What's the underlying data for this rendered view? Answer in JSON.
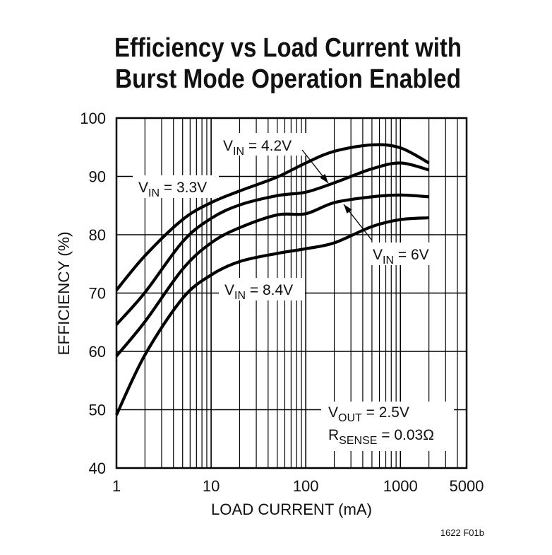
{
  "chart_data": {
    "type": "line",
    "title": [
      "Efficiency vs Load Current with",
      "Burst Mode Operation Enabled"
    ],
    "xlabel": "LOAD CURRENT (mA)",
    "ylabel": "EFFICIENCY (%)",
    "x_scale": "log",
    "xlim": [
      1,
      5000
    ],
    "ylim": [
      40,
      100
    ],
    "grid": true,
    "x_ticks": [
      "1",
      "10",
      "100",
      "1000",
      "5000"
    ],
    "x_tick_values": [
      1,
      10,
      100,
      1000,
      5000
    ],
    "y_ticks": [
      "40",
      "50",
      "60",
      "70",
      "80",
      "90",
      "100"
    ],
    "y_tick_values": [
      40,
      50,
      60,
      70,
      80,
      90,
      100
    ],
    "x": [
      1,
      2,
      5,
      10,
      20,
      50,
      100,
      200,
      500,
      1000,
      2000
    ],
    "series": [
      {
        "name": "VIN = 3.3V",
        "label": {
          "v": "V",
          "sub": "IN",
          "rest": " = 3.3V"
        },
        "values": [
          70.5,
          76.4,
          82.6,
          85.5,
          87.5,
          89.9,
          92.3,
          94.3,
          95.4,
          94.9,
          92.3
        ]
      },
      {
        "name": "VIN = 4.2V",
        "label": {
          "v": "V",
          "sub": "IN",
          "rest": " = 4.2V"
        },
        "values": [
          64.6,
          70.1,
          78.8,
          82.8,
          85.1,
          86.7,
          87.3,
          88.9,
          91.3,
          92.3,
          91.1
        ]
      },
      {
        "name": "VIN = 6V",
        "label": {
          "v": "V",
          "sub": "IN",
          "rest": " = 6V"
        },
        "values": [
          59.2,
          65.1,
          74.1,
          78.6,
          81.2,
          83.4,
          83.6,
          85.5,
          86.5,
          86.8,
          86.5
        ]
      },
      {
        "name": "VIN = 8.4V",
        "label": {
          "v": "V",
          "sub": "IN",
          "rest": " = 8.4V"
        },
        "values": [
          49.1,
          59.4,
          69.1,
          73.1,
          75.4,
          76.8,
          77.6,
          78.6,
          81.4,
          82.6,
          82.9
        ]
      }
    ],
    "annotations": {
      "vout": {
        "v": "V",
        "sub": "OUT",
        "rest": " = 2.5V"
      },
      "rsense": {
        "v": "R",
        "sub": "SENSE",
        "rest": " = 0.03Ω"
      }
    },
    "line_color": "#000000",
    "footnote": "1622 F01b"
  }
}
